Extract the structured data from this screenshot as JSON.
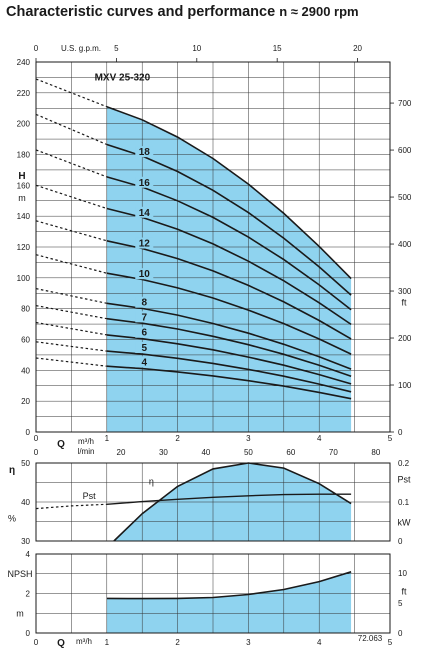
{
  "header": {
    "title": "Characteristic curves and performance",
    "subtitle": "n ≈ 2900 rpm"
  },
  "colors": {
    "fill": "#8fd3ef",
    "line": "#1a1a1a",
    "grid": "#333333"
  },
  "chart_data": [
    {
      "type": "line",
      "title": "Characteristic curves and performance",
      "subtitle": "n ≈ 2900 rpm",
      "model": "MXV 25-320",
      "xlabel": "Q",
      "x_unit_primary": "m³/h",
      "x_unit_secondary": "l/min",
      "x_ticks": [
        "0",
        "1",
        "2",
        "3",
        "4",
        "5"
      ],
      "x_ticks_lmin": [
        "0",
        "20",
        "30",
        "40",
        "50",
        "60",
        "70",
        "80"
      ],
      "top_axis_label": "U.S. g.p.m.",
      "top_ticks": [
        "0",
        "5",
        "10",
        "15",
        "20"
      ],
      "ylabel": "H",
      "y_unit": "m",
      "y_ticks": [
        "0",
        "20",
        "40",
        "60",
        "80",
        "100",
        "120",
        "140",
        "160",
        "180",
        "200",
        "220",
        "240"
      ],
      "y_right_unit": "ft",
      "y_right_ticks": [
        "0",
        "100",
        "200",
        "300",
        "400",
        "500",
        "600",
        "700"
      ],
      "xlim": [
        0,
        5
      ],
      "ylim": [
        0,
        240
      ],
      "operating_range": [
        1.0,
        4.45
      ],
      "grid": true,
      "series": [
        {
          "name": "4",
          "x": [
            0,
            1.0,
            1.5,
            2.0,
            2.5,
            3.0,
            3.5,
            4.0,
            4.45
          ],
          "y": [
            48.0,
            42.7,
            41.1,
            39.0,
            36.4,
            33.3,
            29.8,
            25.7,
            21.6
          ]
        },
        {
          "name": "5",
          "x": [
            0,
            1.0,
            1.5,
            2.0,
            2.5,
            3.0,
            3.5,
            4.0,
            4.45
          ],
          "y": [
            58.5,
            52.5,
            50.5,
            47.8,
            44.5,
            40.6,
            36.2,
            31.1,
            26.1
          ]
        },
        {
          "name": "6",
          "x": [
            0,
            1.0,
            1.5,
            2.0,
            2.5,
            3.0,
            3.5,
            4.0,
            4.45
          ],
          "y": [
            71.0,
            63.0,
            60.5,
            57.2,
            53.3,
            48.6,
            43.3,
            37.2,
            31.2
          ]
        },
        {
          "name": "7",
          "x": [
            0,
            1.0,
            1.5,
            2.0,
            2.5,
            3.0,
            3.5,
            4.0,
            4.45
          ],
          "y": [
            82.0,
            73.5,
            70.6,
            66.8,
            62.1,
            56.6,
            50.4,
            43.3,
            36.2
          ]
        },
        {
          "name": "8",
          "x": [
            0,
            1.0,
            1.5,
            2.0,
            2.5,
            3.0,
            3.5,
            4.0,
            4.45
          ],
          "y": [
            93.0,
            83.5,
            80.2,
            75.8,
            70.4,
            64.1,
            56.9,
            48.8,
            40.8
          ]
        },
        {
          "name": "10",
          "x": [
            0,
            1.0,
            1.5,
            2.0,
            2.5,
            3.0,
            3.5,
            4.0,
            4.45
          ],
          "y": [
            115.0,
            103.0,
            98.9,
            93.5,
            86.9,
            79.1,
            70.3,
            60.3,
            50.5
          ]
        },
        {
          "name": "12",
          "x": [
            0,
            1.0,
            1.5,
            2.0,
            2.5,
            3.0,
            3.5,
            4.0,
            4.45
          ],
          "y": [
            137.0,
            124.0,
            119.0,
            112.5,
            104.5,
            95.1,
            84.4,
            72.3,
            60.4
          ]
        },
        {
          "name": "14",
          "x": [
            0,
            1.0,
            1.5,
            2.0,
            2.5,
            3.0,
            3.5,
            4.0,
            4.45
          ],
          "y": [
            160.0,
            145.0,
            139.2,
            131.5,
            122.0,
            110.8,
            98.1,
            83.8,
            69.8
          ]
        },
        {
          "name": "16",
          "x": [
            0,
            1.0,
            1.5,
            2.0,
            2.5,
            3.0,
            3.5,
            4.0,
            4.45
          ],
          "y": [
            183.0,
            165.5,
            158.9,
            150.0,
            139.2,
            126.4,
            111.8,
            95.4,
            79.3
          ]
        },
        {
          "name": "18",
          "x": [
            0,
            1.0,
            1.5,
            2.0,
            2.5,
            3.0,
            3.5,
            4.0,
            4.45
          ],
          "y": [
            206.0,
            186.5,
            179.0,
            169.0,
            156.8,
            142.3,
            125.7,
            107.1,
            88.8
          ]
        },
        {
          "name": "",
          "x": [
            0,
            1.0,
            1.5,
            2.0,
            2.5,
            3.0,
            3.5,
            4.0,
            4.45
          ],
          "y": [
            229.0,
            211.0,
            202.5,
            191.3,
            177.4,
            160.8,
            141.8,
            120.4,
            99.5
          ]
        }
      ]
    },
    {
      "type": "line",
      "xlabel": "",
      "y_left_label": "η",
      "y_left_unit": "%",
      "y_left_ticks": [
        "30",
        "40",
        "50"
      ],
      "y_right_label": "Pst",
      "y_right_unit": "kW",
      "y_right_ticks": [
        "0",
        "0.1",
        "0.2"
      ],
      "x_ticks": [
        "0",
        "1",
        "2",
        "3",
        "4",
        "5"
      ],
      "xlim": [
        0,
        5
      ],
      "ylim": [
        30,
        50
      ],
      "ylim_right": [
        0,
        0.2
      ],
      "grid": true,
      "series": [
        {
          "name": "η",
          "x": [
            1.1,
            1.5,
            2.0,
            2.5,
            3.0,
            3.5,
            4.0,
            4.45
          ],
          "y": [
            30.0,
            37.0,
            44.0,
            48.5,
            50.0,
            48.7,
            44.7,
            39.6
          ]
        },
        {
          "name": "Pst",
          "axis": "right",
          "x": [
            0,
            0.5,
            1.0,
            1.5,
            2.0,
            2.5,
            3.0,
            3.5,
            4.0,
            4.45
          ],
          "y": [
            0.083,
            0.09,
            0.094,
            0.101,
            0.107,
            0.112,
            0.116,
            0.119,
            0.12,
            0.12
          ]
        }
      ]
    },
    {
      "type": "area",
      "ylabel": "NPSH",
      "y_unit": "m",
      "y_ticks": [
        "0",
        "2",
        "4"
      ],
      "y_right_unit": "ft",
      "y_right_ticks": [
        "0",
        "5",
        "10"
      ],
      "xlabel": "Q",
      "x_unit": "m³/h",
      "x_ticks": [
        "0",
        "1",
        "2",
        "3",
        "4",
        "5"
      ],
      "xlim": [
        0,
        5
      ],
      "ylim": [
        0,
        4
      ],
      "ylim_right": [
        0,
        13.12
      ],
      "grid": true,
      "series": [
        {
          "name": "NPSH",
          "x": [
            1.0,
            1.5,
            2.0,
            2.5,
            3.0,
            3.5,
            4.0,
            4.45
          ],
          "y": [
            1.75,
            1.74,
            1.75,
            1.8,
            1.95,
            2.2,
            2.6,
            3.1
          ]
        }
      ],
      "annotation": "72.063"
    }
  ]
}
